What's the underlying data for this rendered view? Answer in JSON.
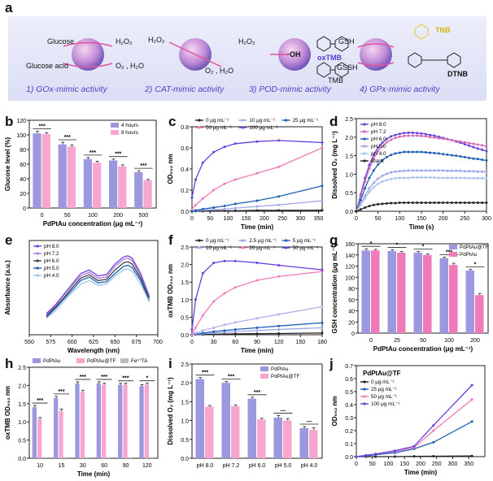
{
  "panel_labels": [
    "a",
    "b",
    "c",
    "d",
    "e",
    "f",
    "g",
    "h",
    "i",
    "j"
  ],
  "scheme": {
    "s1": {
      "left_top": "Glucose",
      "left_bottom": "Glucose acid",
      "right_top": "H₂O₂",
      "right_bottom": "O₂ , H₂O"
    },
    "s2": {
      "left": "H₂O₂",
      "right": "O₂ , H₂O"
    },
    "s3": {
      "left": "H₂O₂",
      "center": "·OH",
      "label_ox": "oxTMB",
      "label_red": "TMB"
    },
    "s4": {
      "left_top": "GSH",
      "left_bottom": "GSSH",
      "label_tnb": "TNB",
      "label_dtnb": "DTNB"
    },
    "activities": [
      "1) GOx-mimic activity",
      "2) CAT-mimic activity",
      "3) POD-mimic activity",
      "4) GPx-mimic activity"
    ]
  },
  "colors": {
    "purple": "#6a3fe0",
    "pink": "#f07ab8",
    "blue": "#1f5fb4",
    "dark": "#222222",
    "grey": "#9a9a9a"
  },
  "chart_data": [
    {
      "id": "b",
      "type": "bar",
      "xlabel": "PdPtAu concentration (μg mL⁻¹)",
      "ylabel": "Glucose level (%)",
      "ylim": [
        0,
        120
      ],
      "yticks": [
        0,
        20,
        40,
        60,
        80,
        100,
        120
      ],
      "categories": [
        "0",
        "50",
        "100",
        "200",
        "500"
      ],
      "series": [
        {
          "name": "4 hours",
          "values": [
            102,
            87,
            67,
            65,
            49
          ],
          "err": [
            3,
            3,
            2,
            2,
            2
          ]
        },
        {
          "name": "8 hours",
          "values": [
            101,
            84,
            62,
            57,
            38
          ],
          "err": [
            2,
            2,
            2,
            2,
            1
          ]
        }
      ],
      "annotations": [
        "***",
        "***",
        "***",
        "***",
        "***"
      ],
      "legend": "top-right"
    },
    {
      "id": "c",
      "type": "line",
      "xlabel": "Time (min)",
      "ylabel": "OD₆₅₂ nm",
      "xlim": [
        0,
        360
      ],
      "ylim": [
        0,
        0.8
      ],
      "xticks": [
        0,
        50,
        100,
        150,
        200,
        250,
        300,
        350
      ],
      "yticks": [
        0.0,
        0.2,
        0.4,
        0.6,
        0.8
      ],
      "x": [
        0,
        10,
        30,
        60,
        90,
        120,
        180,
        240,
        360
      ],
      "series": [
        {
          "name": "0 μg mL⁻¹",
          "values": [
            0,
            0,
            0,
            0.005,
            0.005,
            0.005,
            0.008,
            0.008,
            0.01
          ]
        },
        {
          "name": "10 μg mL⁻¹",
          "values": [
            0,
            0.005,
            0.01,
            0.015,
            0.02,
            0.03,
            0.045,
            0.06,
            0.1
          ]
        },
        {
          "name": "25 μg mL⁻¹",
          "values": [
            0,
            0.01,
            0.02,
            0.035,
            0.05,
            0.07,
            0.1,
            0.14,
            0.24
          ]
        },
        {
          "name": "50 μg mL⁻¹",
          "values": [
            0.02,
            0.06,
            0.12,
            0.2,
            0.26,
            0.3,
            0.36,
            0.42,
            0.6
          ]
        },
        {
          "name": "100 μg mL⁻¹",
          "values": [
            0.13,
            0.3,
            0.46,
            0.56,
            0.61,
            0.64,
            0.66,
            0.67,
            0.65
          ]
        }
      ],
      "legend": "top"
    },
    {
      "id": "d",
      "type": "line",
      "xlabel": "Time (s)",
      "ylabel": "Dissolved O₂ (mg L⁻¹)",
      "xlim": [
        0,
        300
      ],
      "ylim": [
        0,
        2.5
      ],
      "xticks": [
        0,
        50,
        100,
        150,
        200,
        250,
        300
      ],
      "yticks": [
        0.0,
        0.5,
        1.0,
        1.5,
        2.0,
        2.5
      ],
      "x": [
        0,
        10,
        20,
        30,
        40,
        50,
        60,
        70,
        80,
        90,
        100,
        110,
        120,
        130,
        140,
        150,
        160,
        170,
        180,
        190,
        200,
        210,
        220,
        230,
        240,
        250,
        260,
        270,
        280,
        290,
        300
      ],
      "series": [
        {
          "name": "pH 8.0",
          "values": [
            0,
            0.45,
            0.9,
            1.25,
            1.52,
            1.72,
            1.85,
            1.95,
            2.02,
            2.06,
            2.09,
            2.11,
            2.12,
            2.12,
            2.11,
            2.1,
            2.08,
            2.06,
            2.04,
            2.01,
            1.98,
            1.95,
            1.92,
            1.88,
            1.85,
            1.81,
            1.77,
            1.73,
            1.69,
            1.66,
            1.62
          ]
        },
        {
          "name": "pH 7.2",
          "values": [
            0,
            0.4,
            0.8,
            1.15,
            1.42,
            1.62,
            1.76,
            1.86,
            1.93,
            1.98,
            2.01,
            2.03,
            2.04,
            2.04,
            2.04,
            2.03,
            2.02,
            2.0,
            1.99,
            1.97,
            1.96,
            1.94,
            1.92,
            1.9,
            1.88,
            1.86,
            1.84,
            1.82,
            1.8,
            1.78,
            1.75
          ]
        },
        {
          "name": "pH 6.0",
          "values": [
            0,
            0.3,
            0.62,
            0.9,
            1.1,
            1.26,
            1.38,
            1.46,
            1.52,
            1.56,
            1.58,
            1.6,
            1.6,
            1.6,
            1.6,
            1.6,
            1.59,
            1.58,
            1.57,
            1.56,
            1.54,
            1.53,
            1.51,
            1.5,
            1.48,
            1.46,
            1.44,
            1.42,
            1.41,
            1.39,
            1.37
          ]
        },
        {
          "name": "pH 5.0",
          "values": [
            0,
            0.2,
            0.42,
            0.62,
            0.77,
            0.88,
            0.96,
            1.01,
            1.05,
            1.07,
            1.08,
            1.09,
            1.1,
            1.1,
            1.1,
            1.1,
            1.1,
            1.1,
            1.1,
            1.1,
            1.1,
            1.09,
            1.09,
            1.09,
            1.09,
            1.08,
            1.08,
            1.08,
            1.07,
            1.07,
            1.07
          ]
        },
        {
          "name": "pH 4.0",
          "values": [
            0,
            0.17,
            0.35,
            0.52,
            0.65,
            0.74,
            0.8,
            0.84,
            0.87,
            0.89,
            0.9,
            0.9,
            0.9,
            0.91,
            0.91,
            0.91,
            0.91,
            0.91,
            0.91,
            0.9,
            0.9,
            0.9,
            0.9,
            0.9,
            0.9,
            0.9,
            0.89,
            0.89,
            0.89,
            0.89,
            0.89
          ]
        },
        {
          "name": "Blank",
          "values": [
            0,
            0.05,
            0.1,
            0.14,
            0.17,
            0.19,
            0.2,
            0.21,
            0.22,
            0.22,
            0.23,
            0.23,
            0.23,
            0.23,
            0.23,
            0.23,
            0.23,
            0.23,
            0.23,
            0.23,
            0.23,
            0.23,
            0.23,
            0.23,
            0.23,
            0.23,
            0.23,
            0.23,
            0.23,
            0.23,
            0.23
          ]
        }
      ],
      "legend": "top-left"
    },
    {
      "id": "e",
      "type": "line",
      "xlabel": "Wavelength (nm)",
      "ylabel": "Absorbance (a.u.)",
      "xlim": [
        550,
        700
      ],
      "ylim": [
        0,
        0.8
      ],
      "xticks": [
        550,
        575,
        600,
        625,
        650,
        675,
        700
      ],
      "x": [
        570,
        580,
        590,
        600,
        610,
        620,
        630,
        640,
        650,
        660,
        665,
        670,
        680,
        690
      ],
      "series": [
        {
          "name": "pH 8.0",
          "values": [
            0.18,
            0.25,
            0.34,
            0.43,
            0.52,
            0.55,
            0.5,
            0.51,
            0.6,
            0.66,
            0.67,
            0.65,
            0.52,
            0.33
          ]
        },
        {
          "name": "pH 7.2",
          "values": [
            0.17,
            0.24,
            0.33,
            0.42,
            0.5,
            0.53,
            0.48,
            0.49,
            0.58,
            0.64,
            0.65,
            0.63,
            0.5,
            0.32
          ]
        },
        {
          "name": "pH 6.0",
          "values": [
            0.16,
            0.23,
            0.31,
            0.4,
            0.48,
            0.51,
            0.46,
            0.47,
            0.55,
            0.61,
            0.62,
            0.6,
            0.48,
            0.31
          ]
        },
        {
          "name": "pH 5.0",
          "values": [
            0.15,
            0.22,
            0.3,
            0.38,
            0.46,
            0.49,
            0.44,
            0.45,
            0.52,
            0.58,
            0.59,
            0.57,
            0.46,
            0.29
          ]
        },
        {
          "name": "pH 4.0",
          "values": [
            0.14,
            0.2,
            0.28,
            0.36,
            0.43,
            0.46,
            0.42,
            0.43,
            0.5,
            0.55,
            0.56,
            0.54,
            0.43,
            0.28
          ]
        }
      ],
      "legend": "top-left"
    },
    {
      "id": "f",
      "type": "line",
      "xlabel": "Time (min)",
      "ylabel": "oxTMB OD₆₅₂ nm",
      "xlim": [
        0,
        180
      ],
      "ylim": [
        0,
        2.5
      ],
      "xticks": [
        0,
        30,
        60,
        90,
        120,
        150,
        180
      ],
      "yticks": [
        0.0,
        0.5,
        1.0,
        1.5,
        2.0,
        2.5
      ],
      "x": [
        0,
        5,
        15,
        30,
        45,
        60,
        90,
        120,
        180
      ],
      "series": [
        {
          "name": "0 μg mL⁻¹",
          "values": [
            0,
            0.005,
            0.01,
            0.015,
            0.02,
            0.025,
            0.03,
            0.035,
            0.05
          ]
        },
        {
          "name": "2.5 μg mL⁻¹",
          "values": [
            0,
            0.01,
            0.03,
            0.05,
            0.07,
            0.09,
            0.12,
            0.15,
            0.2
          ]
        },
        {
          "name": "5 μg mL⁻¹",
          "values": [
            0,
            0.02,
            0.05,
            0.09,
            0.12,
            0.15,
            0.2,
            0.25,
            0.34
          ]
        },
        {
          "name": "10 μg mL⁻¹",
          "values": [
            0,
            0.05,
            0.12,
            0.2,
            0.28,
            0.35,
            0.47,
            0.58,
            0.8
          ]
        },
        {
          "name": "20 μg mL⁻¹",
          "values": [
            0,
            0.2,
            0.55,
            0.95,
            1.18,
            1.35,
            1.55,
            1.66,
            1.8
          ]
        },
        {
          "name": "50 μg mL⁻¹",
          "values": [
            0.15,
            1.0,
            1.75,
            2.05,
            2.1,
            2.1,
            2.05,
            1.98,
            1.85
          ]
        }
      ],
      "legend": "top"
    },
    {
      "id": "g",
      "type": "bar",
      "xlabel": "PdPtAu concentration (μg mL⁻¹)",
      "ylabel": "GSH concentration (μg mL⁻¹)",
      "ylim": [
        0,
        160
      ],
      "yticks": [
        0,
        20,
        40,
        60,
        80,
        100,
        120,
        140,
        160
      ],
      "categories": [
        "0",
        "25",
        "50",
        "100",
        "200"
      ],
      "series": [
        {
          "name": "PdPtAu@TF",
          "values": [
            148,
            147,
            144,
            134,
            112
          ],
          "err": [
            3,
            2,
            2,
            2,
            2
          ]
        },
        {
          "name": "PdPtAu",
          "values": [
            148,
            144,
            140,
            122,
            68
          ],
          "err": [
            2,
            2,
            2,
            3,
            3
          ]
        }
      ],
      "annotations": [
        "*",
        "*",
        "*",
        "***",
        "*",
        "***",
        "***"
      ],
      "legend": "top-right"
    },
    {
      "id": "h",
      "type": "bar",
      "xlabel": "Time (min)",
      "ylabel": "oxTMB OD₆₅₂ nm",
      "ylim": [
        0,
        2.5
      ],
      "yticks": [
        0.0,
        0.5,
        1.0,
        1.5,
        2.0,
        2.5
      ],
      "categories": [
        "10",
        "15",
        "30",
        "60",
        "90",
        "120"
      ],
      "series": [
        {
          "name": "PdPtAu",
          "values": [
            1.4,
            1.65,
            2.06,
            2.06,
            2.02,
            1.98
          ],
          "err": [
            0.05,
            0.05,
            0.04,
            0.04,
            0.04,
            0.04
          ]
        },
        {
          "name": "PdPtAu@TF",
          "values": [
            1.08,
            1.3,
            1.82,
            2.02,
            2.02,
            2.02
          ],
          "err": [
            0.04,
            0.05,
            0.05,
            0.04,
            0.04,
            0.04
          ]
        },
        {
          "name": "Fe³⁺TA",
          "values": [
            0.03,
            0.03,
            0.03,
            0.03,
            0.03,
            0.03
          ],
          "err": [
            0,
            0,
            0,
            0,
            0,
            0
          ]
        }
      ],
      "annotations": [
        "***",
        "***",
        "***",
        "***",
        "***",
        "*"
      ],
      "legend": "top"
    },
    {
      "id": "i",
      "type": "bar",
      "xlabel": "",
      "ylabel": "Dissolved O₂ (mg L⁻¹)",
      "ylim": [
        0,
        2.5
      ],
      "yticks": [
        0.0,
        0.5,
        1.0,
        1.5,
        2.0,
        2.5
      ],
      "categories": [
        "pH 8.0",
        "pH 7.2",
        "pH 6.0",
        "pH 5.0",
        "pH 4.0"
      ],
      "series": [
        {
          "name": "PdPtAu",
          "values": [
            2.1,
            2.0,
            1.58,
            1.08,
            0.8
          ],
          "err": [
            0.04,
            0.04,
            0.04,
            0.05,
            0.04
          ]
        },
        {
          "name": "PdPtAu@TF",
          "values": [
            1.37,
            1.38,
            1.03,
            1.0,
            0.75
          ],
          "err": [
            0.03,
            0.03,
            0.03,
            0.05,
            0.06
          ]
        }
      ],
      "annotations": [
        "***",
        "***",
        "***",
        "—",
        "—"
      ],
      "legend": "top-right"
    },
    {
      "id": "j",
      "type": "line",
      "title": "PdPtAu@TF",
      "xlabel": "Time (min)",
      "ylabel": "OD₆₅₂ nm",
      "xlim": [
        0,
        400
      ],
      "ylim": [
        0,
        0.7
      ],
      "xticks": [
        0,
        50,
        100,
        150,
        200,
        250,
        300,
        350
      ],
      "yticks": [
        0.0,
        0.1,
        0.2,
        0.3,
        0.4,
        0.5,
        0.6,
        0.7
      ],
      "x": [
        0,
        30,
        60,
        120,
        180,
        240,
        360
      ],
      "series": [
        {
          "name": "0 μg mL⁻¹",
          "values": [
            0,
            0,
            0,
            0,
            0.002,
            0.003,
            0.005
          ]
        },
        {
          "name": "25 μg mL⁻¹",
          "values": [
            0,
            0.005,
            0.015,
            0.03,
            0.06,
            0.11,
            0.27
          ]
        },
        {
          "name": "50 μg mL⁻¹",
          "values": [
            0,
            0.01,
            0.02,
            0.04,
            0.07,
            0.2,
            0.44
          ]
        },
        {
          "name": "100 μg mL⁻¹",
          "values": [
            0,
            0.01,
            0.02,
            0.045,
            0.08,
            0.24,
            0.55
          ]
        }
      ],
      "legend": "top-left"
    }
  ]
}
